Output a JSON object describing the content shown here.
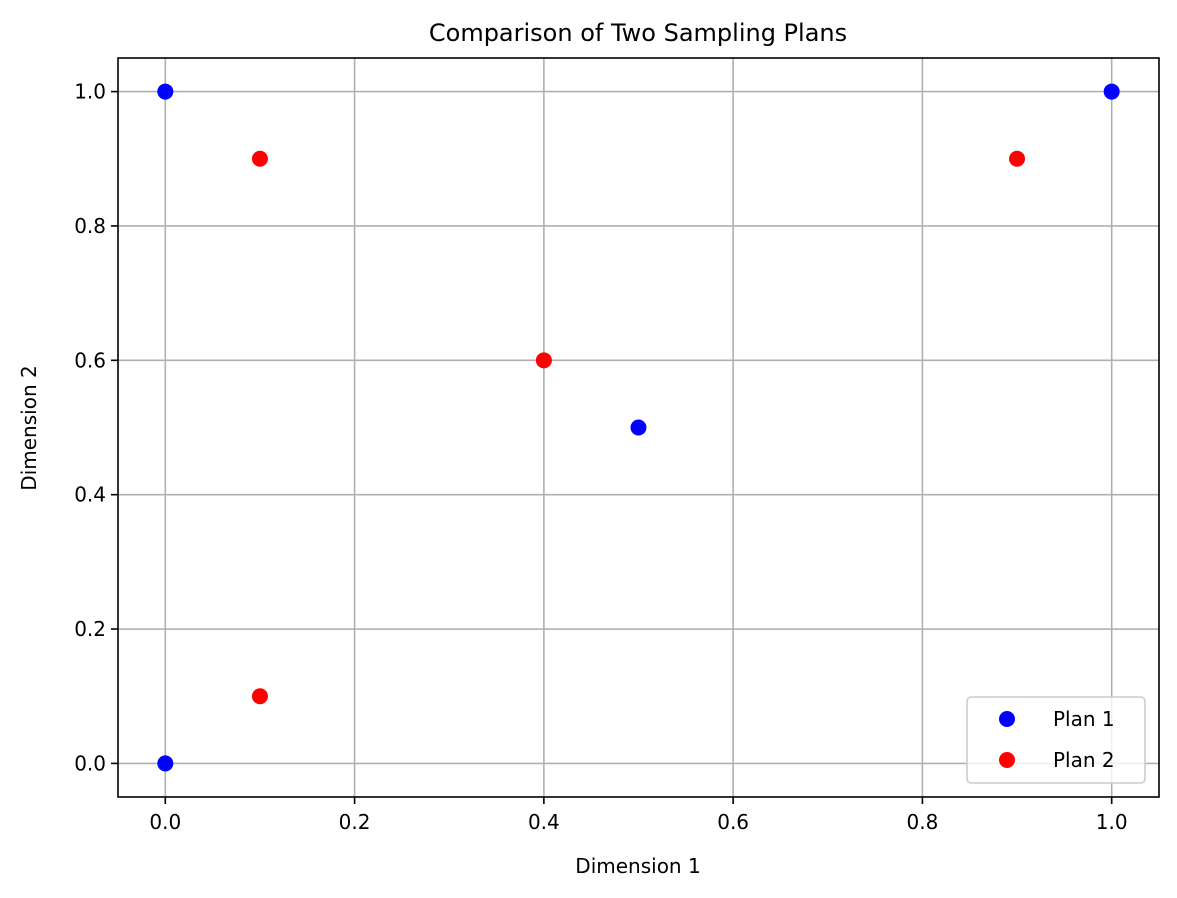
{
  "chart_data": {
    "type": "scatter",
    "title": "Comparison of Two Sampling Plans",
    "xlabel": "Dimension 1",
    "ylabel": "Dimension 2",
    "xlim": [
      -0.05,
      1.05
    ],
    "ylim": [
      -0.05,
      1.05
    ],
    "x_ticks": [
      0.0,
      0.2,
      0.4,
      0.6,
      0.8,
      1.0
    ],
    "y_ticks": [
      0.0,
      0.2,
      0.4,
      0.6,
      0.8,
      1.0
    ],
    "x_tick_labels": [
      "0.0",
      "0.2",
      "0.4",
      "0.6",
      "0.8",
      "1.0"
    ],
    "y_tick_labels": [
      "0.0",
      "0.2",
      "0.4",
      "0.6",
      "0.8",
      "1.0"
    ],
    "grid": true,
    "legend_position": "bottom-right",
    "series": [
      {
        "name": "Plan 1",
        "color": "#0000ff",
        "points": [
          [
            0.0,
            0.0
          ],
          [
            0.5,
            0.5
          ],
          [
            1.0,
            1.0
          ],
          [
            0.0,
            1.0
          ]
        ]
      },
      {
        "name": "Plan 2",
        "color": "#ff0000",
        "points": [
          [
            0.1,
            0.1
          ],
          [
            0.4,
            0.6
          ],
          [
            0.9,
            0.9
          ],
          [
            0.1,
            0.9
          ]
        ]
      }
    ]
  }
}
